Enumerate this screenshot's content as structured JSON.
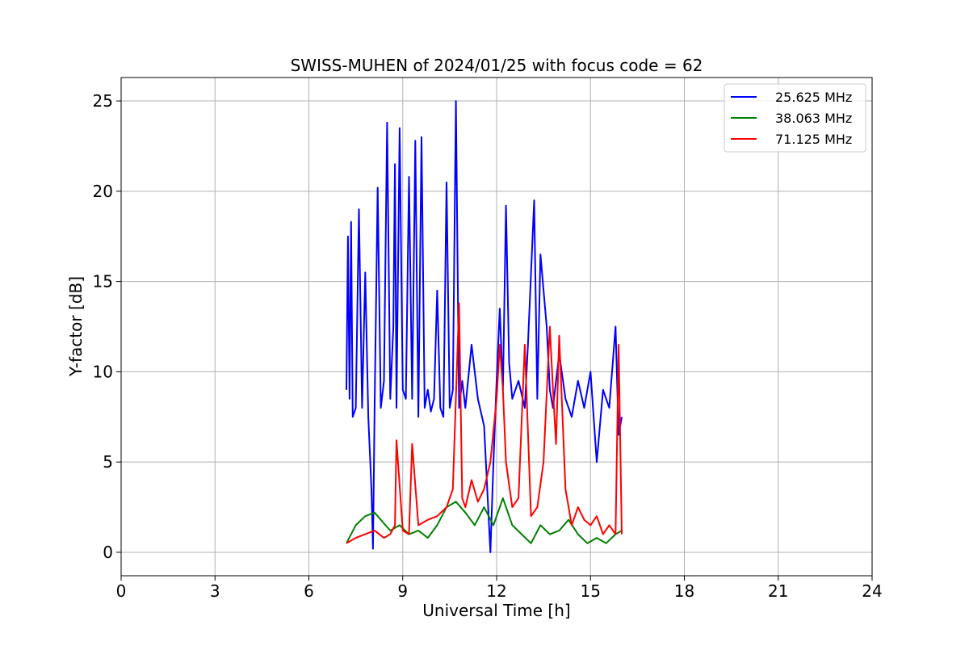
{
  "chart_data": {
    "type": "line",
    "title": "SWISS-MUHEN of 2024/01/25 with focus code = 62",
    "xlabel": "Universal Time [h]",
    "ylabel": "Y-factor [dB]",
    "xlim": [
      0,
      24
    ],
    "ylim": [
      -1.3,
      26.3
    ],
    "xticks": [
      0,
      3,
      6,
      9,
      12,
      15,
      18,
      21,
      24
    ],
    "yticks": [
      0,
      5,
      10,
      15,
      20,
      25
    ],
    "grid": true,
    "legend_position": "top-right",
    "series": [
      {
        "name": "25.625 MHz",
        "color": "#0000ff",
        "x": [
          7.2,
          7.25,
          7.3,
          7.35,
          7.4,
          7.5,
          7.6,
          7.7,
          7.8,
          7.9,
          8.0,
          8.05,
          8.1,
          8.2,
          8.3,
          8.4,
          8.5,
          8.6,
          8.7,
          8.75,
          8.8,
          8.9,
          9.0,
          9.1,
          9.2,
          9.3,
          9.4,
          9.5,
          9.6,
          9.7,
          9.8,
          9.9,
          10.0,
          10.1,
          10.2,
          10.3,
          10.4,
          10.5,
          10.6,
          10.7,
          10.8,
          10.9,
          11.0,
          11.2,
          11.4,
          11.6,
          11.8,
          11.9,
          12.0,
          12.1,
          12.2,
          12.3,
          12.4,
          12.5,
          12.7,
          12.9,
          13.0,
          13.2,
          13.3,
          13.4,
          13.6,
          13.7,
          13.8,
          14.0,
          14.2,
          14.4,
          14.6,
          14.8,
          15.0,
          15.2,
          15.4,
          15.6,
          15.8,
          15.9,
          16.0
        ],
        "y": [
          9.0,
          17.5,
          8.5,
          18.3,
          7.5,
          8.0,
          19.0,
          8.0,
          15.5,
          7.5,
          3.5,
          0.2,
          8.0,
          20.2,
          8.0,
          9.5,
          23.8,
          8.5,
          12.5,
          21.5,
          8.0,
          23.5,
          9.0,
          8.5,
          20.8,
          8.5,
          22.8,
          7.5,
          23.0,
          8.0,
          9.0,
          7.8,
          8.5,
          14.5,
          8.0,
          7.5,
          20.5,
          8.0,
          9.0,
          25.0,
          8.0,
          9.5,
          8.0,
          11.5,
          8.5,
          7.0,
          0.0,
          5.0,
          9.5,
          13.5,
          9.0,
          19.2,
          10.5,
          8.5,
          9.5,
          8.0,
          11.5,
          19.5,
          8.5,
          16.5,
          12.5,
          9.0,
          8.0,
          11.0,
          8.5,
          7.5,
          9.5,
          8.0,
          10.0,
          5.0,
          9.0,
          8.0,
          12.5,
          6.5,
          7.5
        ]
      },
      {
        "name": "38.063 MHz",
        "color": "#008000",
        "x": [
          7.2,
          7.5,
          7.8,
          8.1,
          8.3,
          8.6,
          8.9,
          9.2,
          9.5,
          9.8,
          10.1,
          10.4,
          10.7,
          11.0,
          11.3,
          11.6,
          11.9,
          12.2,
          12.5,
          12.8,
          13.1,
          13.4,
          13.7,
          14.0,
          14.3,
          14.6,
          14.9,
          15.2,
          15.5,
          15.8,
          16.0
        ],
        "y": [
          0.5,
          1.5,
          2.0,
          2.2,
          1.8,
          1.2,
          1.5,
          1.0,
          1.2,
          0.8,
          1.5,
          2.5,
          2.8,
          2.2,
          1.5,
          2.5,
          1.5,
          3.0,
          1.5,
          1.0,
          0.5,
          1.5,
          1.0,
          1.2,
          1.8,
          1.0,
          0.5,
          0.8,
          0.5,
          1.0,
          1.2
        ]
      },
      {
        "name": "71.125 MHz",
        "color": "#ff0000",
        "x": [
          7.2,
          7.5,
          7.8,
          8.1,
          8.4,
          8.6,
          8.75,
          8.8,
          9.0,
          9.2,
          9.3,
          9.5,
          9.8,
          10.1,
          10.4,
          10.6,
          10.8,
          10.9,
          11.0,
          11.2,
          11.4,
          11.6,
          11.8,
          12.0,
          12.1,
          12.2,
          12.3,
          12.5,
          12.7,
          12.9,
          13.1,
          13.3,
          13.5,
          13.7,
          13.8,
          13.9,
          14.0,
          14.2,
          14.4,
          14.6,
          14.8,
          15.0,
          15.2,
          15.4,
          15.6,
          15.8,
          15.9,
          16.0
        ],
        "y": [
          0.5,
          0.8,
          1.0,
          1.2,
          0.8,
          1.0,
          1.5,
          6.2,
          1.2,
          1.0,
          6.0,
          1.5,
          1.8,
          2.0,
          2.5,
          3.5,
          13.8,
          3.0,
          2.5,
          4.0,
          2.8,
          3.5,
          5.0,
          8.5,
          11.5,
          9.0,
          5.0,
          2.5,
          3.0,
          11.5,
          2.0,
          2.5,
          5.0,
          12.5,
          9.0,
          6.0,
          12.0,
          3.5,
          1.5,
          2.5,
          1.8,
          1.5,
          2.0,
          1.0,
          1.5,
          1.0,
          11.5,
          1.0
        ]
      }
    ]
  }
}
